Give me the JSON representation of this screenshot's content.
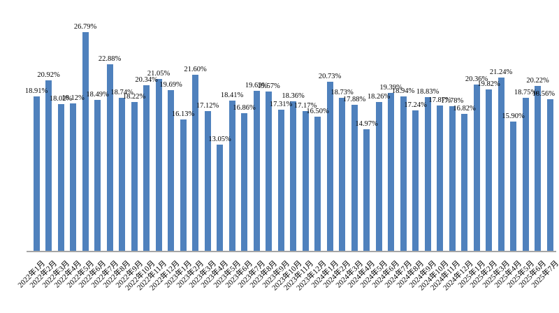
{
  "chart_data": {
    "type": "bar",
    "title": "",
    "xlabel": "",
    "ylabel": "",
    "ylim": [
      0,
      28
    ],
    "grid": false,
    "legend": "none",
    "y_axis_visible": false,
    "bar_color": "#4F81BD",
    "axis_color": "#A6A6A6",
    "label_color": "#000000",
    "background": "#FFFFFF",
    "categories": [
      "2022年1月",
      "2022年2月",
      "2022年3月",
      "2022年4月",
      "2022年5月",
      "2022年6月",
      "2022年7月",
      "2022年8月",
      "2022年9月",
      "2022年10月",
      "2022年11月",
      "2022年12月",
      "2023年1月",
      "2023年2月",
      "2023年3月",
      "2023年4月",
      "2023年5月",
      "2023年6月",
      "2023年7月",
      "2023年8月",
      "2023年9月",
      "2023年10月",
      "2023年11月",
      "2023年12月",
      "2024年1月",
      "2024年2月",
      "2024年3月",
      "2024年4月",
      "2024年5月",
      "2024年6月",
      "2024年7月",
      "2024年8月",
      "2024年9月",
      "2024年10月",
      "2024年11月",
      "2024年12月",
      "2025年1月",
      "2025年2月",
      "2025年3月",
      "2025年4月",
      "2025年5月",
      "2025年6月",
      "2025年7月"
    ],
    "values": [
      18.91,
      20.92,
      18.02,
      18.12,
      26.79,
      18.49,
      22.88,
      18.74,
      18.22,
      20.34,
      21.05,
      19.69,
      16.13,
      21.6,
      17.12,
      13.05,
      18.41,
      16.86,
      19.63,
      19.57,
      17.31,
      18.36,
      17.17,
      16.5,
      20.73,
      18.73,
      17.88,
      14.97,
      18.26,
      19.39,
      18.94,
      17.24,
      18.83,
      17.87,
      17.78,
      16.82,
      20.36,
      19.82,
      21.24,
      15.9,
      18.75,
      20.22,
      18.56
    ],
    "data_labels": [
      "18.91%",
      "20.92%",
      "18.02%",
      "18.12%",
      "26.79%",
      "18.49%",
      "22.88%",
      "18.74%",
      "18.22%",
      "20.34%",
      "21.05%",
      "19.69%",
      "16.13%",
      "21.60%",
      "17.12%",
      "13.05%",
      "18.41%",
      "16.86%",
      "19.63%",
      "19.57%",
      "17.31%",
      "18.36%",
      "17.17%",
      "16.50%",
      "20.73%",
      "18.73%",
      "17.88%",
      "14.97%",
      "18.26%",
      "19.39%",
      "18.94%",
      "17.24%",
      "18.83%",
      "17.87%",
      "17.78%",
      "16.82%",
      "20.36%",
      "19.82%",
      "21.24%",
      "15.90%",
      "18.75%",
      "20.22%",
      "18.56%"
    ]
  }
}
